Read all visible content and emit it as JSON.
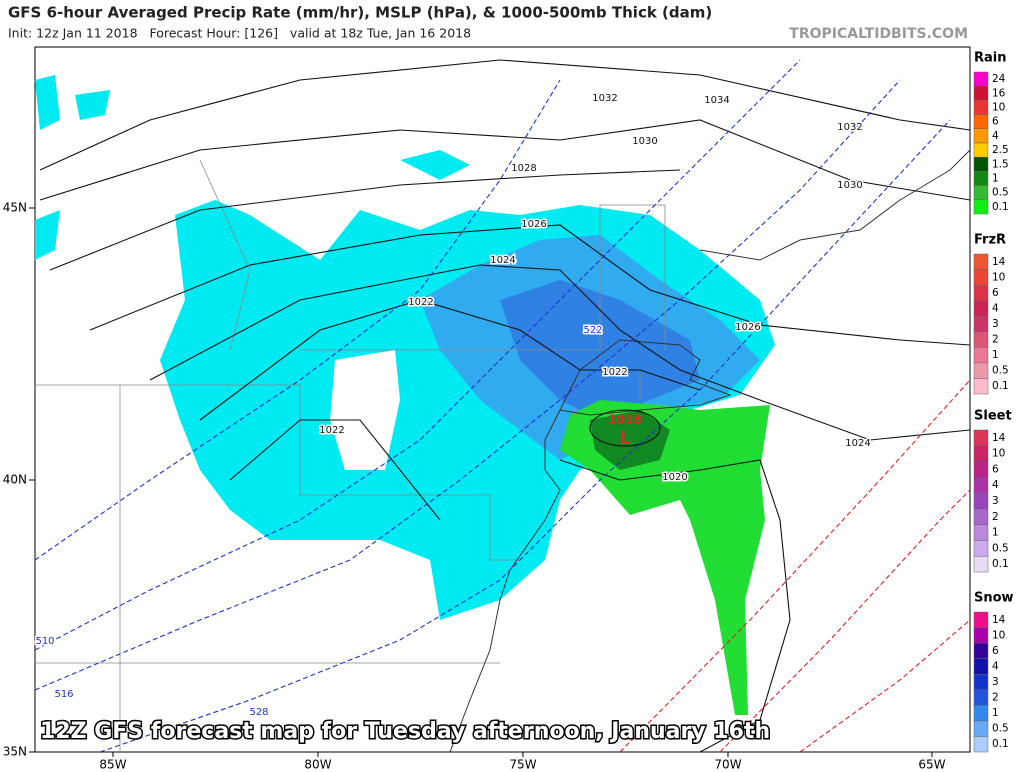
{
  "header": {
    "title": "GFS 6-hour Averaged Precip Rate (mm/hr), MSLP (hPa), & 1000-500mb Thick (dam)",
    "subtitle": "Init: 12z Jan 11 2018   Forecast Hour: [126]   valid at 18z Tue, Jan 16 2018",
    "source": "TROPICALTIDBITS.COM"
  },
  "map": {
    "lat_labels": [
      "45N",
      "40N",
      "35N"
    ],
    "lon_labels": [
      "85W",
      "80W",
      "75W",
      "70W",
      "65W"
    ],
    "isobar_labels": [
      "1032",
      "1034",
      "1032",
      "1030",
      "1030",
      "1028",
      "1026",
      "1024",
      "1022",
      "1022",
      "1022",
      "1020",
      "1024",
      "1026"
    ],
    "thickness_labels": [
      "522",
      "510",
      "516",
      "528"
    ],
    "low": {
      "pressure": "1018",
      "label": "L"
    },
    "caption": "12Z GFS forecast map for Tuesday afternoon, January 16th"
  },
  "legend": [
    {
      "title": "Rain",
      "labels": [
        "24",
        "16",
        "10",
        "6",
        "4",
        "2.5",
        "1.5",
        "1",
        "0.5",
        "0.1"
      ],
      "colors": [
        "#ff00cc",
        "#cc1133",
        "#ee3333",
        "#ff6600",
        "#ff9900",
        "#ffcc00",
        "#005500",
        "#118811",
        "#33bb33",
        "#11ee11"
      ]
    },
    {
      "title": "FrzR",
      "labels": [
        "14",
        "10",
        "6",
        "4",
        "3",
        "2",
        "1",
        "0.5",
        "0.1"
      ],
      "colors": [
        "#ee5533",
        "#ee4433",
        "#dd3344",
        "#cc2255",
        "#cc3366",
        "#dd5577",
        "#ee7799",
        "#ee99aa",
        "#ffbbcc"
      ]
    },
    {
      "title": "Sleet",
      "labels": [
        "14",
        "10",
        "6",
        "4",
        "3",
        "2",
        "1",
        "0.5",
        "0.1"
      ],
      "colors": [
        "#dd3355",
        "#cc2266",
        "#bb2288",
        "#aa33aa",
        "#9944bb",
        "#aa66cc",
        "#bb88dd",
        "#ccaaee",
        "#e8dcf5"
      ]
    },
    {
      "title": "Snow",
      "labels": [
        "14",
        "10",
        "6",
        "4",
        "3",
        "2",
        "1",
        "0.5",
        "0.1"
      ],
      "colors": [
        "#ee1188",
        "#aa00aa",
        "#330099",
        "#1111aa",
        "#1133cc",
        "#2255dd",
        "#3388ee",
        "#66aaf5",
        "#aaccff"
      ]
    }
  ]
}
